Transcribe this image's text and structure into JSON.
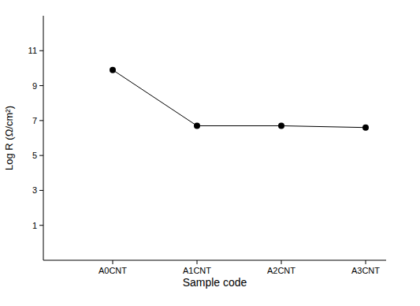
{
  "chart_data": {
    "type": "line",
    "x_label": "Sample code",
    "y_label": "Log R (Ω/cm²)",
    "categories": [
      "A0CNT",
      "A1CNT",
      "A2CNT",
      "A3CNT"
    ],
    "values": [
      9.9,
      6.7,
      6.7,
      6.6
    ],
    "color": "#000000",
    "marker": "circle",
    "line_style": "solid",
    "ylim": [
      -1,
      13
    ],
    "yticks": [
      1,
      3,
      5,
      7,
      9,
      11
    ],
    "grid": false
  }
}
